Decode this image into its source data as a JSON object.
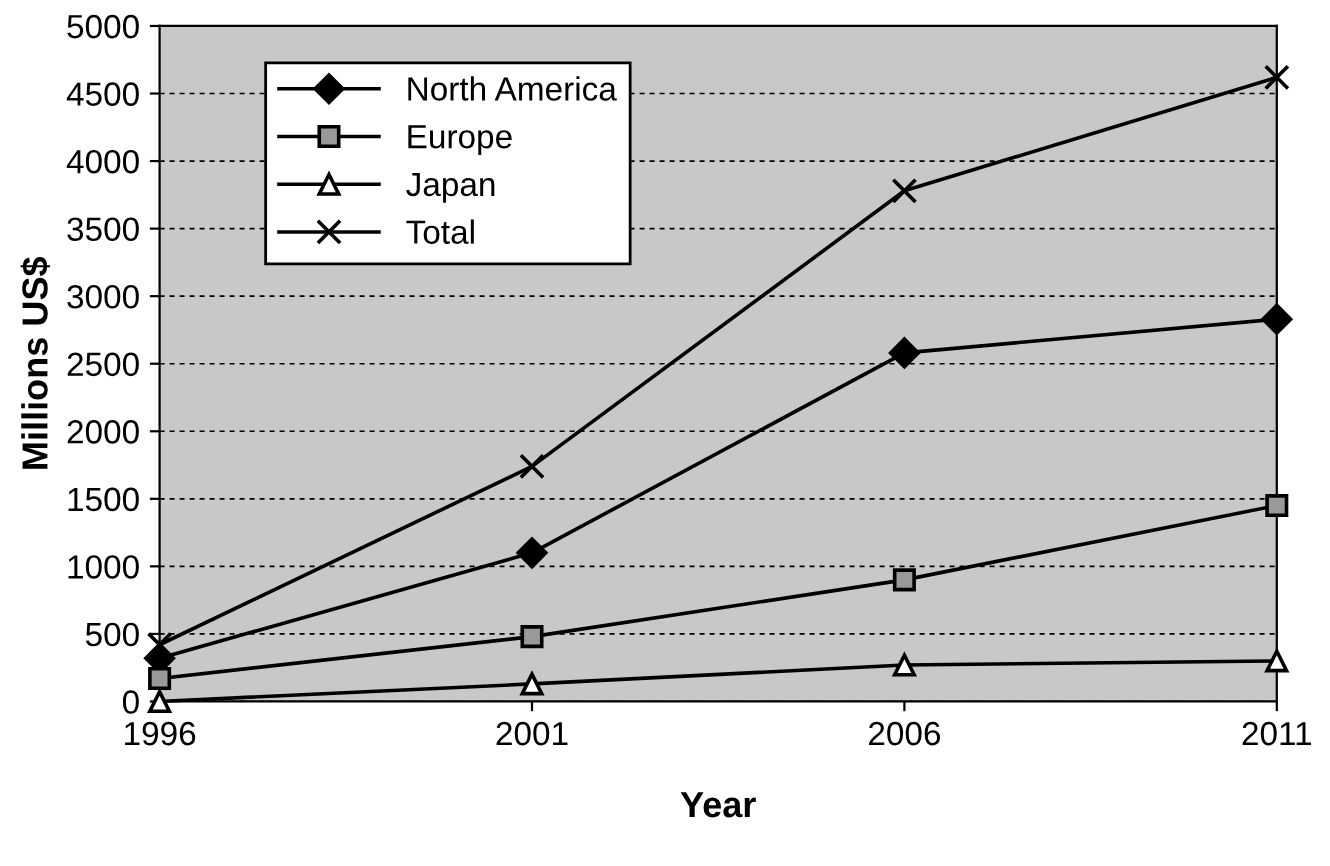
{
  "chart_data": {
    "type": "line",
    "xlabel": "Year",
    "ylabel": "Millions US$",
    "x": [
      1996,
      2001,
      2006,
      2011
    ],
    "series": [
      {
        "name": "North America",
        "color": "#000000",
        "marker": "diamond",
        "values": [
          320,
          1100,
          2580,
          2830
        ]
      },
      {
        "name": "Europe",
        "color": "#000000",
        "marker": "square",
        "values": [
          170,
          480,
          900,
          1450
        ]
      },
      {
        "name": "Japan",
        "color": "#000000",
        "marker": "triangle",
        "values": [
          0,
          130,
          270,
          300
        ]
      },
      {
        "name": "Total",
        "color": "#000000",
        "marker": "cross",
        "values": [
          420,
          1740,
          3780,
          4620
        ]
      }
    ],
    "xlim": [
      1996,
      2011
    ],
    "xticks": [
      1996,
      2001,
      2006,
      2011
    ],
    "ylim": [
      0,
      5000
    ],
    "yticks": [
      0,
      500,
      1000,
      1500,
      2000,
      2500,
      3000,
      3500,
      4000,
      4500,
      5000
    ],
    "grid": "y",
    "legend": "top left",
    "line_style": "solid"
  }
}
